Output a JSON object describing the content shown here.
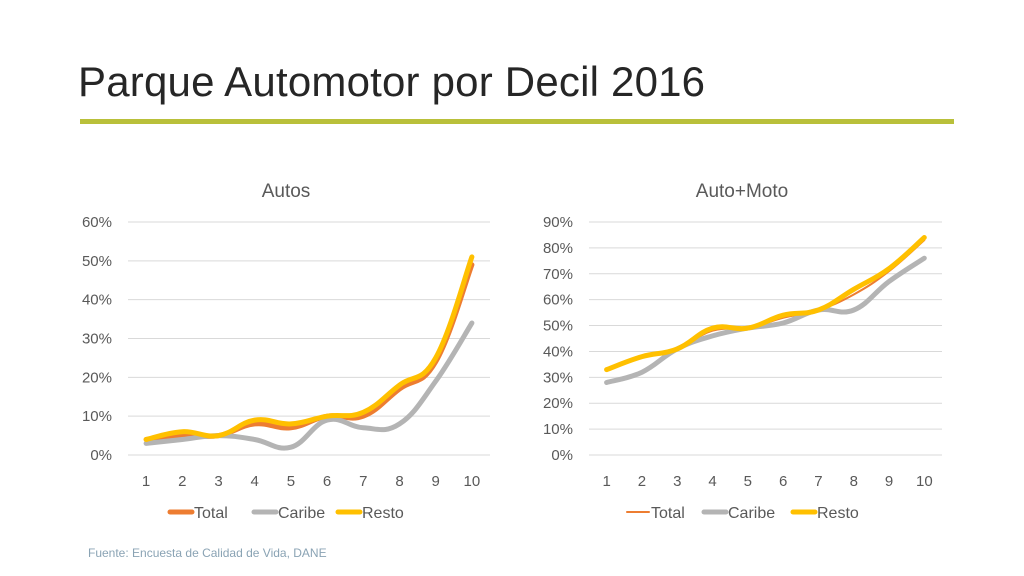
{
  "slide": {
    "title": "Parque Automotor por Decil 2016",
    "footnote": "Fuente: Encuesta de Calidad de Vida, DANE"
  },
  "colors": {
    "Total": "#ed7d31",
    "Caribe": "#b4b4b4",
    "Resto": "#ffc000",
    "grid": "#d9d9d9",
    "accent_rule": "#b9c03a"
  },
  "chart_data": [
    {
      "type": "line",
      "title": "Autos",
      "x": [
        1,
        2,
        3,
        4,
        5,
        6,
        7,
        8,
        9,
        10
      ],
      "series": [
        {
          "name": "Total",
          "values": [
            0.04,
            0.05,
            0.05,
            0.08,
            0.07,
            0.1,
            0.1,
            0.17,
            0.24,
            0.49
          ]
        },
        {
          "name": "Caribe",
          "values": [
            0.03,
            0.04,
            0.05,
            0.04,
            0.02,
            0.09,
            0.07,
            0.08,
            0.19,
            0.34
          ]
        },
        {
          "name": "Resto",
          "values": [
            0.04,
            0.06,
            0.05,
            0.09,
            0.08,
            0.1,
            0.11,
            0.18,
            0.25,
            0.51
          ]
        }
      ],
      "ylim": [
        0,
        0.6
      ],
      "yticks": [
        "0%",
        "10%",
        "20%",
        "30%",
        "40%",
        "50%",
        "60%"
      ],
      "legend": "bottom",
      "grid": true
    },
    {
      "type": "line",
      "title": "Auto+Moto",
      "x": [
        1,
        2,
        3,
        4,
        5,
        6,
        7,
        8,
        9,
        10
      ],
      "series": [
        {
          "name": "Total",
          "values": [
            0.33,
            0.38,
            0.41,
            0.48,
            0.49,
            0.53,
            0.56,
            0.62,
            0.71,
            0.83
          ]
        },
        {
          "name": "Caribe",
          "values": [
            0.28,
            0.32,
            0.41,
            0.46,
            0.49,
            0.51,
            0.56,
            0.56,
            0.67,
            0.76
          ]
        },
        {
          "name": "Resto",
          "values": [
            0.33,
            0.38,
            0.41,
            0.49,
            0.49,
            0.54,
            0.56,
            0.64,
            0.72,
            0.84
          ]
        }
      ],
      "ylim": [
        0,
        0.9
      ],
      "yticks": [
        "0%",
        "10%",
        "20%",
        "30%",
        "40%",
        "50%",
        "60%",
        "70%",
        "80%",
        "90%"
      ],
      "legend": "bottom",
      "grid": true
    }
  ]
}
